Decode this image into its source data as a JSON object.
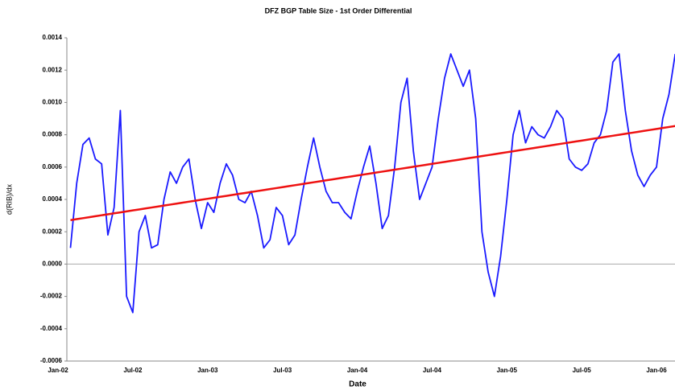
{
  "chart_data": {
    "type": "line",
    "title": "DFZ BGP Table Size - 1st Order Differential",
    "x_label": "Date",
    "y_label": "d(RIB)/dx",
    "categories": [
      "Jan-02",
      null,
      null,
      null,
      null,
      null,
      null,
      null,
      null,
      null,
      null,
      null,
      "Jul-02",
      null,
      null,
      null,
      null,
      null,
      null,
      null,
      null,
      null,
      null,
      null,
      "Jan-03",
      null,
      null,
      null,
      null,
      null,
      null,
      null,
      null,
      null,
      null,
      null,
      "Jul-03",
      null,
      null,
      null,
      null,
      null,
      null,
      null,
      null,
      null,
      null,
      null,
      "Jan-04",
      null,
      null,
      null,
      null,
      null,
      null,
      null,
      null,
      null,
      null,
      null,
      "Jul-04",
      null,
      null,
      null,
      null,
      null,
      null,
      null,
      null,
      null,
      null,
      null,
      "Jan-05",
      null,
      null,
      null,
      null,
      null,
      null,
      null,
      null,
      null,
      null,
      null,
      "Jul-05",
      null,
      null,
      null,
      null,
      null,
      null,
      null,
      null,
      null,
      null,
      null,
      "Jan-06",
      null,
      null,
      null
    ],
    "series": [
      {
        "color": "#1a1aff",
        "values": [
          null,
          null,
          0.0001,
          0.0005,
          0.00074,
          0.00078,
          0.00065,
          0.00062,
          0.00018,
          0.00035,
          0.00095,
          -0.0002,
          -0.0003,
          0.0002,
          0.0003,
          0.0001,
          0.00012,
          0.0004,
          0.00057,
          0.0005,
          0.0006,
          0.00065,
          0.0004,
          0.00022,
          0.00038,
          0.00032,
          0.0005,
          0.00062,
          0.00055,
          0.0004,
          0.00038,
          0.00045,
          0.0003,
          0.0001,
          0.00015,
          0.00035,
          0.0003,
          0.00012,
          0.00018,
          0.0004,
          0.0006,
          0.00078,
          0.0006,
          0.00045,
          0.00038,
          0.00038,
          0.00032,
          0.00028,
          0.00045,
          0.0006,
          0.00073,
          0.0005,
          0.00022,
          0.0003,
          0.0006,
          0.001,
          0.00115,
          0.0007,
          0.0004,
          0.0005,
          0.0006,
          0.0009,
          0.00115,
          0.0013,
          0.0012,
          0.0011,
          0.0012,
          0.0009,
          0.0002,
          -5e-05,
          -0.0002,
          5e-05,
          0.0004,
          0.0008,
          0.00095,
          0.00075,
          0.00085,
          0.0008,
          0.00078,
          0.00085,
          0.00095,
          0.0009,
          0.00065,
          0.0006,
          0.00058,
          0.00062,
          0.00075,
          0.0008,
          0.00095,
          0.00125,
          0.0013,
          0.00095,
          0.0007,
          0.00055,
          0.00048,
          0.00055,
          0.0006,
          0.0009,
          0.00105,
          0.0013
        ]
      },
      {
        "color": "#ee1111",
        "values": [
          null,
          null,
          0.000272,
          0.000278,
          0.000284,
          0.00029,
          0.000296,
          0.000302,
          0.000308,
          0.000314,
          0.00032,
          0.000326,
          0.000332,
          0.000338,
          0.000344,
          0.00035,
          0.000356,
          0.000362,
          0.000368,
          0.000374,
          0.00038,
          0.000386,
          0.000392,
          0.000398,
          0.000404,
          0.00041,
          0.000416,
          0.000422,
          0.000428,
          0.000434,
          0.00044,
          0.000446,
          0.000452,
          0.000458,
          0.000464,
          0.00047,
          0.000476,
          0.000482,
          0.000488,
          0.000494,
          0.0005,
          0.000506,
          0.000512,
          0.000518,
          0.000524,
          0.00053,
          0.000536,
          0.000542,
          0.000548,
          0.000554,
          0.00056,
          0.000566,
          0.000572,
          0.000578,
          0.000584,
          0.00059,
          0.000596,
          0.000602,
          0.000608,
          0.000614,
          0.00062,
          0.000626,
          0.000632,
          0.000638,
          0.000644,
          0.00065,
          0.000656,
          0.000662,
          0.000668,
          0.000674,
          0.00068,
          0.000686,
          0.000692,
          0.000698,
          0.000704,
          0.00071,
          0.000716,
          0.000722,
          0.000728,
          0.000734,
          0.00074,
          0.000746,
          0.000752,
          0.000758,
          0.000764,
          0.00077,
          0.000776,
          0.000782,
          0.000788,
          0.000794,
          0.0008,
          0.000806,
          0.000812,
          0.000818,
          0.000824,
          0.00083,
          0.000836,
          0.000842,
          0.000848,
          0.000854
        ]
      }
    ],
    "ylim": [
      -0.0006,
      0.0014
    ],
    "yticks": [
      -0.0006,
      -0.0004,
      -0.0002,
      {
        "value": 0,
        "label": "0.0000"
      },
      0.0002,
      0.0004,
      0.0006,
      0.0008,
      {
        "value": 0.001,
        "label": "0.0010"
      },
      0.0012,
      0.0014
    ],
    "zero_line": true
  }
}
